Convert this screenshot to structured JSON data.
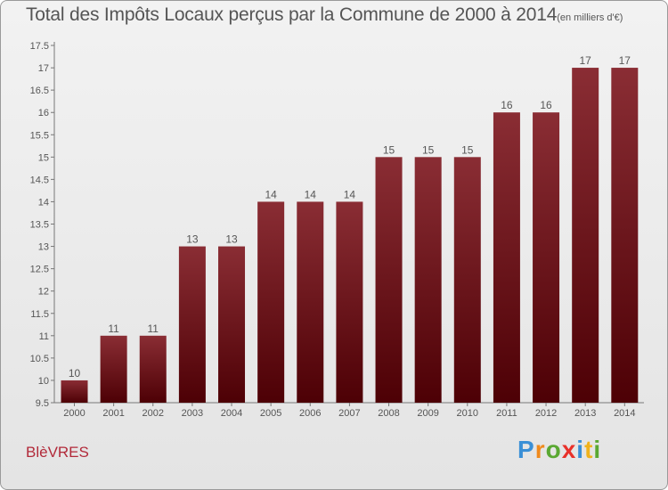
{
  "header": {
    "title": "Total des Impôts Locaux perçus par la Commune de 2000 à 2014",
    "unit": "(en milliers d'€)"
  },
  "footer": {
    "commune": "BlèVRES",
    "logo": "Proxiti"
  },
  "colors": {
    "bar_top": "#8a2d34",
    "bar_bottom": "#4d0005",
    "text": "#555555",
    "commune": "#b22a3a"
  },
  "chart_data": {
    "type": "bar",
    "title": "Total des Impôts Locaux perçus par la Commune de 2000 à 2014",
    "subtitle": "(en milliers d'€)",
    "categories": [
      "2000",
      "2001",
      "2002",
      "2003",
      "2004",
      "2005",
      "2006",
      "2007",
      "2008",
      "2009",
      "2010",
      "2011",
      "2012",
      "2013",
      "2014"
    ],
    "values": [
      10,
      11,
      11,
      13,
      13,
      14,
      14,
      14,
      15,
      15,
      15,
      16,
      16,
      17,
      17
    ],
    "data_labels": [
      "10",
      "11",
      "11",
      "13",
      "13",
      "14",
      "14",
      "14",
      "15",
      "15",
      "15",
      "16",
      "16",
      "17",
      "17"
    ],
    "ylim": [
      9.5,
      17.5
    ],
    "yticks": [
      9.5,
      10,
      10.5,
      11,
      11.5,
      12,
      12.5,
      13,
      13.5,
      14,
      14.5,
      15,
      15.5,
      16,
      16.5,
      17,
      17.5
    ],
    "ytick_labels": [
      "9.5",
      "10",
      "10.5",
      "11",
      "11.5",
      "12",
      "12.5",
      "13",
      "13.5",
      "14",
      "14.5",
      "15",
      "15.5",
      "16",
      "16.5",
      "17",
      "17.5"
    ],
    "xlabel": "",
    "ylabel": "",
    "grid": false,
    "legend": "none"
  }
}
